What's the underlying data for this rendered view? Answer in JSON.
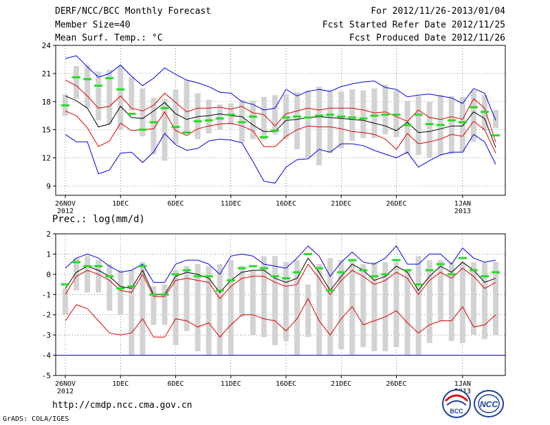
{
  "header": {
    "title": "DERF/NCC/BCC Monthly Forecast",
    "member_size": "Member Size=40",
    "var_temp": "Mean Surf. Temp.: °C",
    "period": "For 2012/11/26-2013/01/04",
    "started": "Fcst Started Refer Date 2012/11/25",
    "produced": "Fcst Produced Date 2012/11/26"
  },
  "precip_label": "Prec.: log(mm/d)",
  "footer": {
    "url": "http://cmdp.ncc.cma.gov.cn",
    "grads": "GrADS: COLA/IGES"
  },
  "logos": {
    "bcc_text": "BCC",
    "ncc_text": "NCC"
  },
  "colors": {
    "envelope": "#0000dd",
    "spread": "#dd0000",
    "mean": "#000000",
    "median": "#22dd22",
    "box": "#d3d3d3",
    "baseline": "#0000aa"
  },
  "chart_data": [
    {
      "type": "line",
      "name": "temperature",
      "ylim": [
        8,
        24
      ],
      "yticks": [
        9,
        12,
        15,
        18,
        21,
        24
      ],
      "xticks": [
        {
          "day": 0,
          "label": "26NOV",
          "sub": "2012"
        },
        {
          "day": 5,
          "label": "1DEC"
        },
        {
          "day": 10,
          "label": "6DEC"
        },
        {
          "day": 15,
          "label": "11DEC"
        },
        {
          "day": 20,
          "label": "16DEC"
        },
        {
          "day": 25,
          "label": "21DEC"
        },
        {
          "day": 30,
          "label": "26DEC"
        },
        {
          "day": 36,
          "label": "1JAN",
          "sub": "2013"
        }
      ],
      "days": 40,
      "box_low": [
        16.5,
        18.3,
        17.3,
        16.0,
        15.6,
        15.0,
        17.0,
        14.3,
        12.4,
        11.7,
        13.5,
        14.8,
        14.0,
        14.6,
        15.0,
        15.5,
        13.6,
        14.0,
        13.9,
        14.5,
        14.0,
        12.9,
        12.0,
        11.2,
        12.5,
        13.0,
        13.8,
        14.1,
        14.1,
        14.5,
        14.2,
        12.4,
        12.3,
        12.0,
        12.3,
        12.4,
        12.6,
        13.7,
        14.9,
        15.2
      ],
      "box_high": [
        18.8,
        21.8,
        21.9,
        21.2,
        21.4,
        21.8,
        20.6,
        19.4,
        18.4,
        18.3,
        19.3,
        20.3,
        18.9,
        18.2,
        17.7,
        17.8,
        18.2,
        18.1,
        18.5,
        18.7,
        18.8,
        19.0,
        19.2,
        19.6,
        19.1,
        19.1,
        19.3,
        19.2,
        19.4,
        19.8,
        19.2,
        18.1,
        18.6,
        18.0,
        18.7,
        18.6,
        18.5,
        19.2,
        18.7,
        17.1
      ],
      "median": [
        17.6,
        20.6,
        20.4,
        19.7,
        20.5,
        19.3,
        16.7,
        15.0,
        15.8,
        17.3,
        15.3,
        14.7,
        15.9,
        16.0,
        16.2,
        16.6,
        15.8,
        16.4,
        14.2,
        14.9,
        16.3,
        16.4,
        16.3,
        16.5,
        16.6,
        16.4,
        16.3,
        16.2,
        16.5,
        16.6,
        16.6,
        15.5,
        16.6,
        15.6,
        15.5,
        16.0,
        15.8,
        17.4,
        16.9,
        14.4
      ],
      "series": [
        {
          "name": "max",
          "color": "#0000dd",
          "values": [
            22.6,
            22.9,
            21.7,
            20.6,
            21.0,
            21.9,
            20.7,
            19.7,
            20.5,
            21.6,
            20.9,
            20.3,
            20.0,
            19.6,
            19.0,
            18.9,
            18.0,
            17.7,
            17.1,
            17.3,
            19.3,
            18.6,
            19.1,
            19.3,
            19.1,
            19.6,
            19.9,
            20.1,
            20.2,
            19.5,
            19.3,
            18.5,
            18.7,
            18.8,
            18.6,
            18.4,
            17.8,
            19.4,
            18.9,
            16.0
          ]
        },
        {
          "name": "upper",
          "color": "#dd0000",
          "values": [
            20.3,
            19.7,
            18.6,
            17.3,
            17.5,
            18.6,
            17.3,
            17.0,
            17.6,
            18.9,
            17.9,
            16.9,
            17.3,
            17.3,
            17.4,
            17.2,
            17.5,
            16.8,
            16.6,
            15.4,
            16.7,
            17.0,
            17.3,
            17.1,
            17.3,
            17.3,
            17.3,
            17.1,
            16.8,
            16.9,
            16.4,
            15.9,
            17.1,
            16.3,
            16.1,
            16.4,
            16.1,
            18.3,
            17.3,
            13.7
          ]
        },
        {
          "name": "mean",
          "color": "#000000",
          "values": [
            18.6,
            18.1,
            17.3,
            15.3,
            15.6,
            17.5,
            16.3,
            16.2,
            17.0,
            17.9,
            16.7,
            16.1,
            16.4,
            16.5,
            16.7,
            16.5,
            16.4,
            15.5,
            14.8,
            14.8,
            16.0,
            16.1,
            16.3,
            16.4,
            16.3,
            16.2,
            16.1,
            16.0,
            15.7,
            15.4,
            14.9,
            15.8,
            14.7,
            14.8,
            15.1,
            15.4,
            15.4,
            16.9,
            16.2,
            13.1
          ]
        },
        {
          "name": "lower",
          "color": "#dd0000",
          "values": [
            17.0,
            16.5,
            15.2,
            13.2,
            13.8,
            15.7,
            14.9,
            15.0,
            15.1,
            16.9,
            14.9,
            14.4,
            15.1,
            15.4,
            15.6,
            15.7,
            15.4,
            14.9,
            13.2,
            13.2,
            14.3,
            15.0,
            15.4,
            15.3,
            15.3,
            15.1,
            14.8,
            14.7,
            14.5,
            14.0,
            12.9,
            14.6,
            13.5,
            13.7,
            14.0,
            14.5,
            14.3,
            15.9,
            15.0,
            12.5
          ]
        },
        {
          "name": "min",
          "color": "#0000dd",
          "values": [
            14.5,
            13.7,
            13.7,
            10.3,
            10.7,
            12.5,
            12.6,
            11.5,
            12.6,
            14.6,
            13.4,
            12.8,
            13.0,
            13.8,
            14.0,
            13.9,
            13.6,
            11.6,
            9.5,
            9.3,
            11.0,
            11.8,
            11.9,
            12.9,
            12.6,
            13.5,
            13.5,
            13.3,
            12.8,
            12.4,
            12.0,
            12.6,
            11.0,
            11.7,
            12.3,
            12.6,
            12.6,
            14.5,
            13.7,
            11.3
          ]
        }
      ]
    },
    {
      "type": "line",
      "name": "precipitation",
      "ylim": [
        -5,
        2
      ],
      "yticks": [
        -5,
        -4,
        -3,
        -2,
        -1,
        0,
        1,
        2
      ],
      "xticks": [
        {
          "day": 0,
          "label": "26NOV",
          "sub": "2012"
        },
        {
          "day": 5,
          "label": "1DEC"
        },
        {
          "day": 10,
          "label": "6DEC"
        },
        {
          "day": 15,
          "label": "11DEC"
        },
        {
          "day": 20,
          "label": "16DEC"
        },
        {
          "day": 25,
          "label": "21DEC"
        },
        {
          "day": 30,
          "label": "26DEC"
        },
        {
          "day": 36,
          "label": "1JAN",
          "sub": "2013"
        }
      ],
      "days": 40,
      "baseline": -4,
      "box_low": [
        -2.0,
        -0.8,
        -0.9,
        -0.9,
        -1.8,
        -2.0,
        -4.0,
        -4.0,
        -2.5,
        -2.5,
        -3.5,
        -2.8,
        -3.8,
        -4.0,
        -4.0,
        -4.0,
        -2.1,
        -3.0,
        -3.1,
        -3.5,
        -3.3,
        -4.0,
        -3.1,
        -4.0,
        -4.0,
        -3.7,
        -4.0,
        -3.6,
        -3.8,
        -3.8,
        -3.6,
        -4.0,
        -4.0,
        -3.4,
        -2.3,
        -3.3,
        -3.4,
        -3.0,
        -3.2,
        -3.0
      ],
      "box_high": [
        -0.7,
        0.8,
        0.9,
        0.7,
        0.5,
        0.2,
        0.2,
        0.6,
        -0.6,
        -0.5,
        0.2,
        0.4,
        0.5,
        0.4,
        0.5,
        0.7,
        0.4,
        0.2,
        0.9,
        0.9,
        0.6,
        0.7,
        -0.5,
        0.5,
        0.8,
        0.7,
        0.7,
        0.5,
        0.6,
        0.6,
        0.6,
        0.2,
        0.9,
        0.7,
        0.7,
        0.6,
        0.6,
        0.6,
        0.6,
        0.6
      ],
      "median": [
        -0.5,
        0.6,
        0.4,
        0.4,
        -0.1,
        -0.7,
        -0.6,
        0.4,
        -1.0,
        -1.0,
        0.0,
        0.2,
        -0.1,
        -0.1,
        -0.8,
        -0.3,
        0.3,
        0.4,
        0.3,
        -0.1,
        -0.2,
        0.1,
        1.0,
        0.3,
        -0.8,
        0.1,
        0.7,
        0.2,
        -0.1,
        0.0,
        0.7,
        0.2,
        -0.5,
        0.2,
        0.5,
        0.0,
        0.8,
        0.2,
        -0.1,
        0.1
      ],
      "series": [
        {
          "name": "max",
          "color": "#0000dd",
          "values": [
            0.3,
            0.8,
            1.0,
            0.8,
            0.4,
            0.1,
            0.2,
            0.5,
            -0.4,
            -0.4,
            0.5,
            0.7,
            0.7,
            0.5,
            0.0,
            0.9,
            1.0,
            0.9,
            0.5,
            0.4,
            0.3,
            0.8,
            1.4,
            0.9,
            -0.1,
            0.6,
            1.1,
            0.6,
            0.5,
            0.8,
            1.4,
            0.5,
            0.5,
            1.0,
            1.0,
            0.5,
            1.3,
            0.8,
            0.6,
            0.7
          ]
        },
        {
          "name": "mean",
          "color": "#000000",
          "values": [
            -0.7,
            0.1,
            0.4,
            0.2,
            -0.1,
            -0.6,
            -0.7,
            0.2,
            -1.0,
            -1.0,
            -0.1,
            0.1,
            0.0,
            -0.2,
            -0.9,
            -0.3,
            0.1,
            0.2,
            0.2,
            -0.2,
            -0.4,
            -0.2,
            0.8,
            0.1,
            -0.8,
            -0.1,
            0.5,
            0.2,
            -0.3,
            -0.1,
            0.4,
            0.1,
            -0.8,
            -0.1,
            0.4,
            0.1,
            0.6,
            0.2,
            -0.4,
            -0.2
          ]
        },
        {
          "name": "upper",
          "color": "#dd0000",
          "values": [
            -1.0,
            -0.1,
            0.2,
            0.0,
            -0.3,
            -0.8,
            -0.9,
            0.0,
            -1.1,
            -1.1,
            -0.3,
            -0.2,
            -0.3,
            -0.4,
            -1.2,
            -0.6,
            -0.2,
            -0.1,
            -0.1,
            -0.4,
            -0.6,
            -0.5,
            0.5,
            -0.2,
            -1.0,
            -0.3,
            0.2,
            -0.1,
            -0.5,
            -0.3,
            0.1,
            -0.2,
            -1.0,
            -0.3,
            0.1,
            -0.2,
            0.3,
            -0.1,
            -0.7,
            -0.4
          ]
        },
        {
          "name": "lower",
          "color": "#dd0000",
          "values": [
            -2.3,
            -1.5,
            -1.7,
            -2.3,
            -2.9,
            -3.0,
            -2.9,
            -2.2,
            -3.1,
            -3.1,
            -2.2,
            -2.3,
            -2.6,
            -2.4,
            -3.1,
            -2.5,
            -2.0,
            -2.0,
            -2.2,
            -2.3,
            -2.8,
            -2.2,
            -1.2,
            -2.3,
            -3.0,
            -2.2,
            -1.6,
            -2.5,
            -2.3,
            -2.1,
            -1.8,
            -2.4,
            -2.9,
            -2.5,
            -2.3,
            -2.3,
            -1.6,
            -2.6,
            -2.5,
            -2.0
          ]
        }
      ]
    }
  ]
}
